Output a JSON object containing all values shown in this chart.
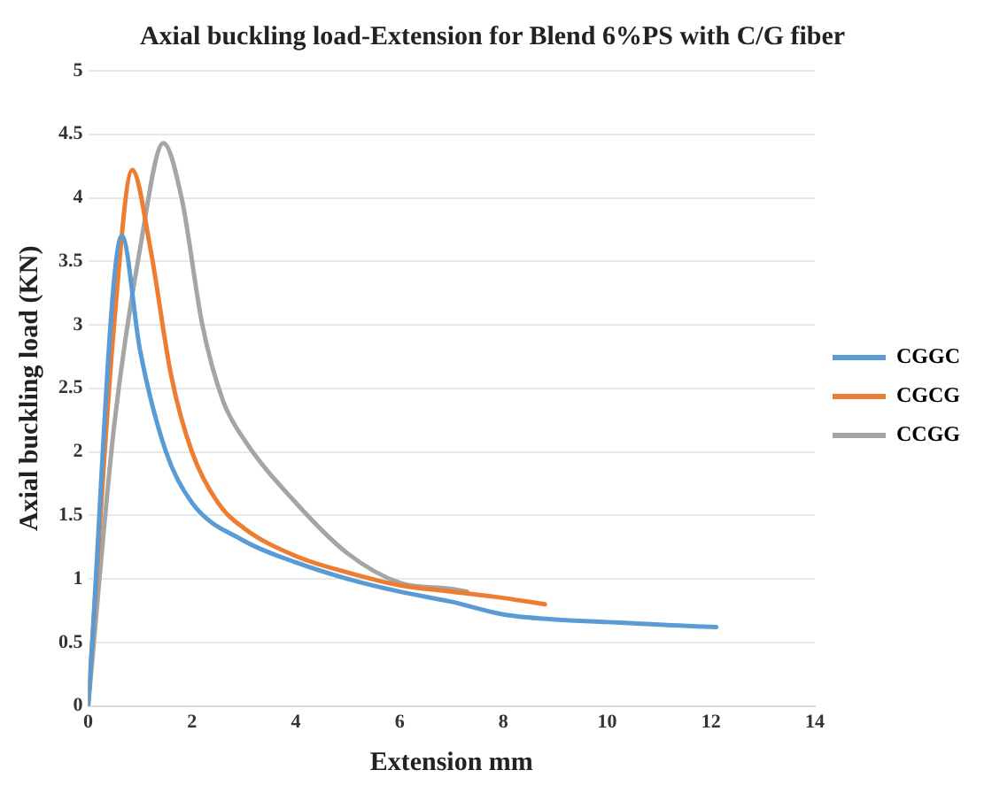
{
  "chart_data": {
    "type": "line",
    "title": "Axial buckling load-Extension for Blend 6%PS with C/G fiber",
    "xlabel": "Extension mm",
    "ylabel": "Axial buckling load (KN)",
    "xlim": [
      0,
      14
    ],
    "xticks": [
      0,
      2,
      4,
      6,
      8,
      10,
      12,
      14
    ],
    "ylim": [
      0,
      5
    ],
    "yticks": [
      0,
      0.5,
      1,
      1.5,
      2,
      2.5,
      3,
      3.5,
      4,
      4.5,
      5
    ],
    "grid": "y",
    "legend": "right",
    "marker": "none",
    "line_style": "solid",
    "series": [
      {
        "name": "CGGC",
        "color": "#5b9bd5",
        "x": [
          0,
          0.65,
          1,
          1.5,
          2,
          3,
          4,
          5,
          6,
          7,
          8,
          9,
          10,
          11,
          12.1
        ],
        "values": [
          0,
          3.7,
          2.8,
          2.0,
          1.6,
          1.3,
          1.13,
          1.0,
          0.9,
          0.82,
          0.72,
          0.68,
          0.66,
          0.64,
          0.62
        ]
      },
      {
        "name": "CGCG",
        "color": "#ed7d31",
        "x": [
          0,
          0.5,
          0.85,
          1.2,
          1.6,
          2,
          2.5,
          3,
          4,
          5,
          6,
          7,
          8,
          8.8
        ],
        "values": [
          0,
          3.0,
          4.22,
          3.6,
          2.6,
          2.0,
          1.6,
          1.4,
          1.18,
          1.05,
          0.95,
          0.9,
          0.85,
          0.8
        ]
      },
      {
        "name": "CCGG",
        "color": "#a5a5a5",
        "x": [
          0,
          0.5,
          1,
          1.45,
          1.8,
          2.2,
          2.6,
          3,
          4,
          5,
          6,
          7,
          7.3
        ],
        "values": [
          0,
          2.2,
          3.6,
          4.43,
          4.0,
          3.0,
          2.4,
          2.1,
          1.6,
          1.2,
          0.97,
          0.92,
          0.9
        ]
      }
    ]
  }
}
